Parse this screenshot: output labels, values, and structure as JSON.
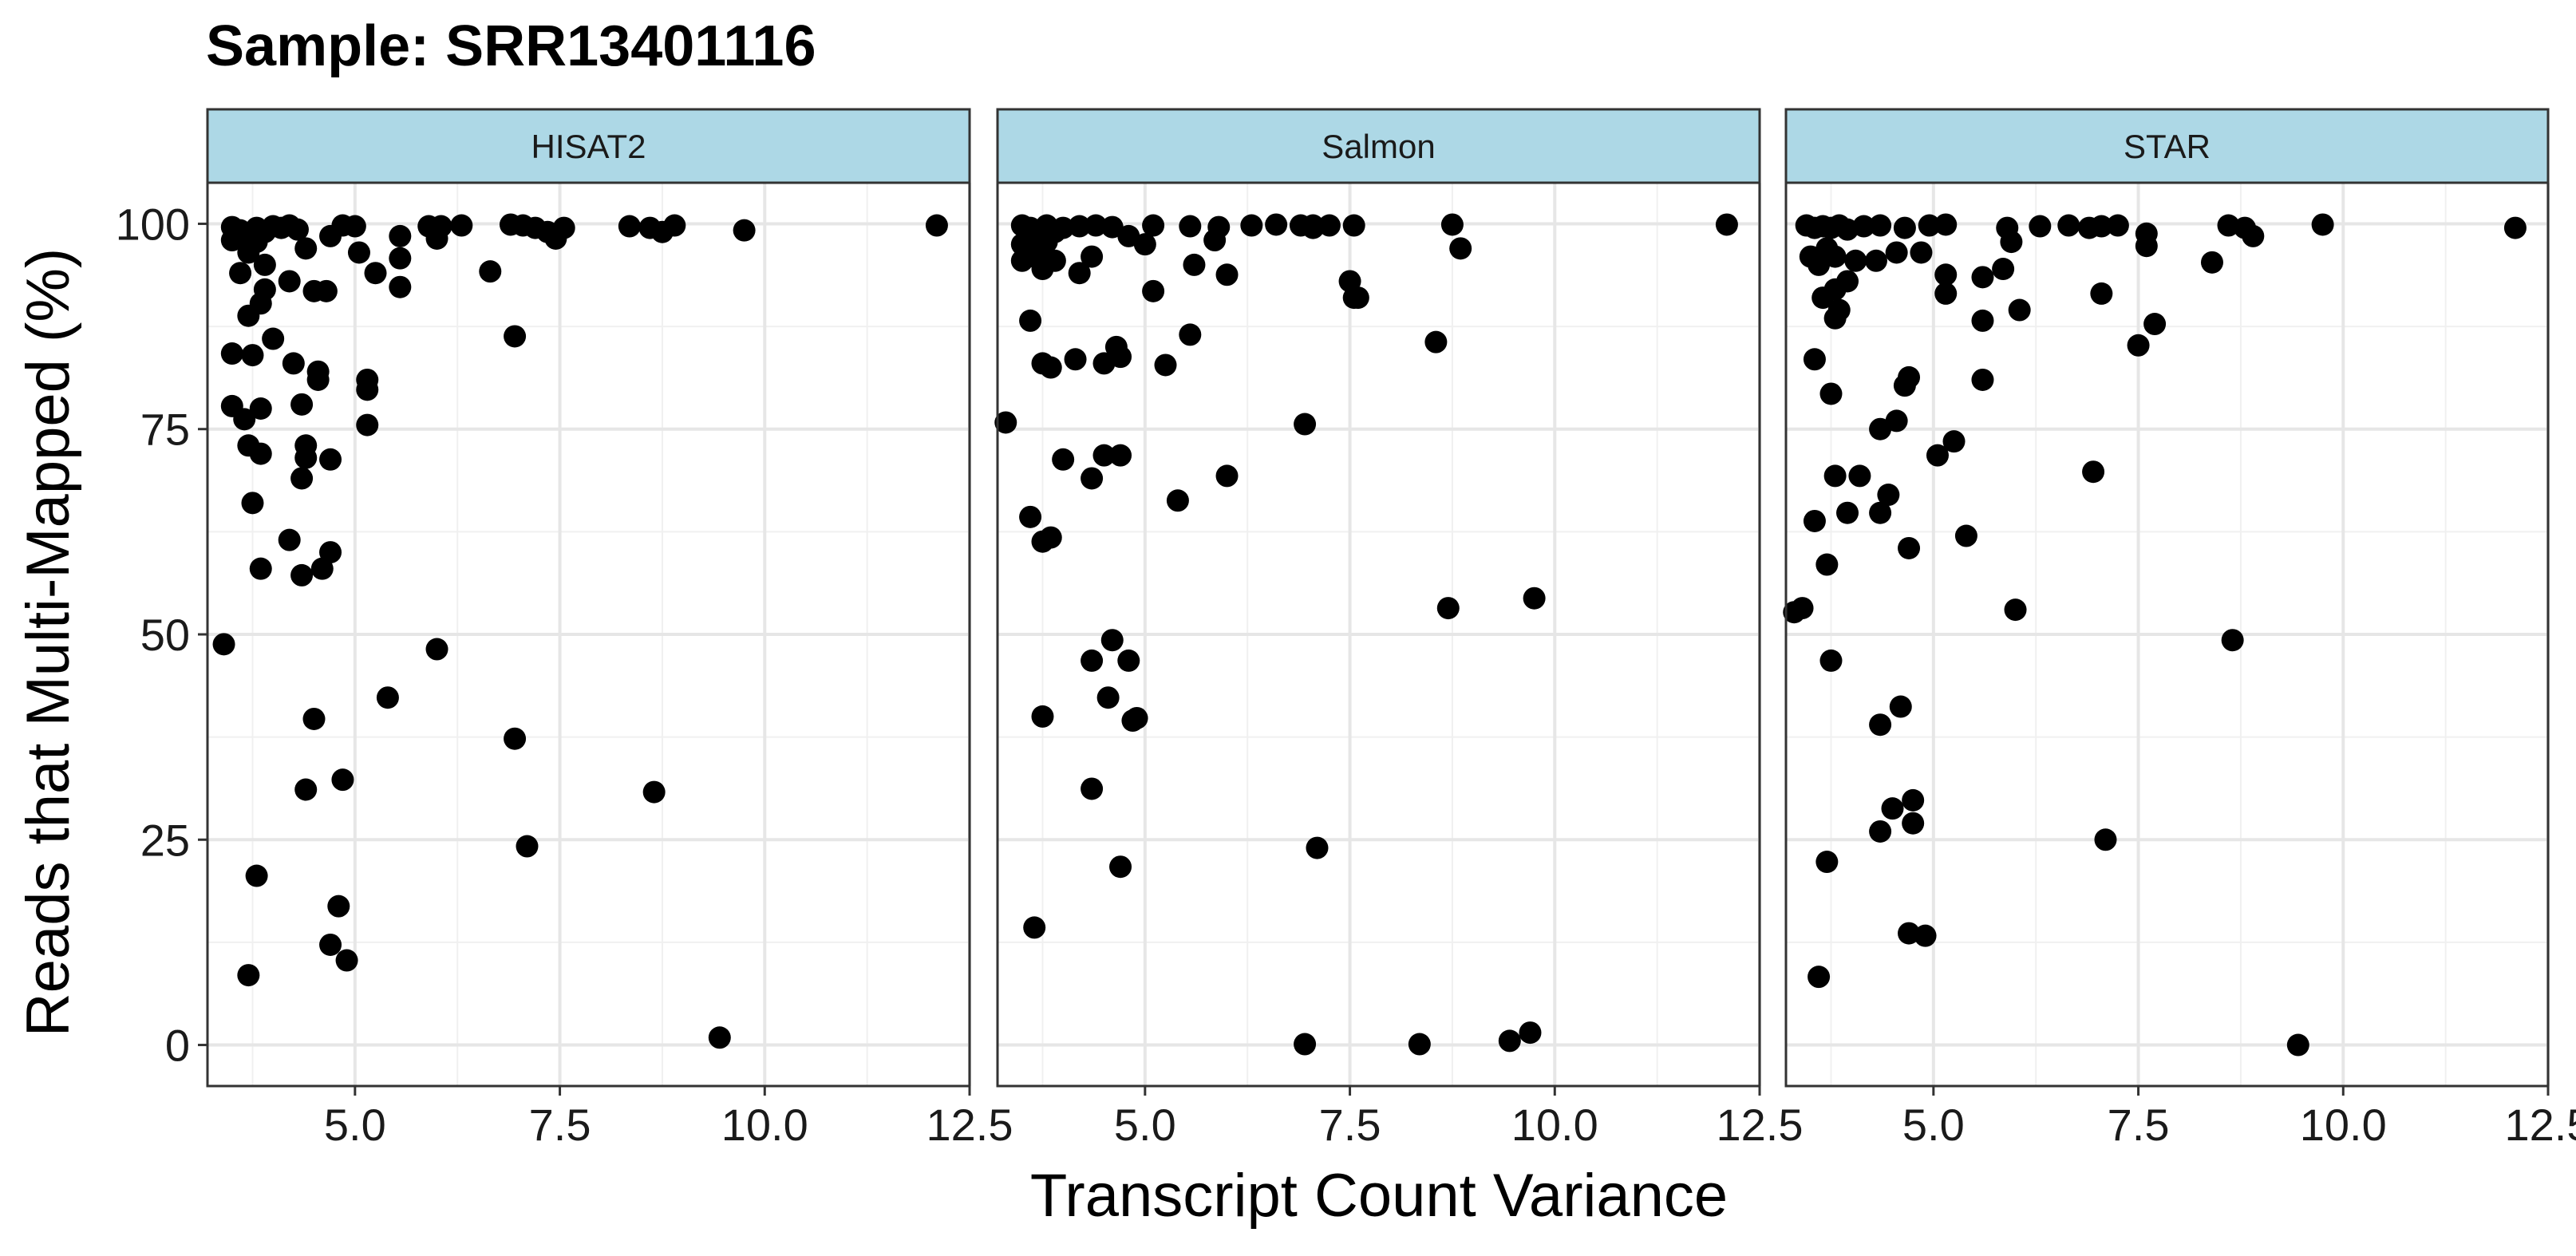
{
  "title": "Sample: SRR13401116",
  "chart_data": {
    "type": "scatter",
    "title": "Sample: SRR13401116",
    "xlabel": "Transcript Count Variance",
    "ylabel": "Reads that Multi-Mapped (%)",
    "xlim": [
      3.2,
      12.5
    ],
    "ylim": [
      -5,
      105
    ],
    "x_ticks": [
      "5.0",
      "7.5",
      "10.0",
      "12.5"
    ],
    "x_tick_values": [
      5.0,
      7.5,
      10.0,
      12.5
    ],
    "y_ticks": [
      "0",
      "25",
      "50",
      "75",
      "100"
    ],
    "y_tick_values": [
      0,
      25,
      50,
      75,
      100
    ],
    "grid": true,
    "strip_color": "#ADD8E6",
    "point_color": "#000000",
    "panels": [
      {
        "name": "HISAT2",
        "points": [
          [
            3.5,
            99.6
          ],
          [
            3.6,
            99.2
          ],
          [
            3.7,
            98.8
          ],
          [
            3.8,
            99.5
          ],
          [
            3.9,
            99.0
          ],
          [
            4.0,
            99.7
          ],
          [
            4.1,
            99.5
          ],
          [
            4.2,
            99.8
          ],
          [
            4.3,
            99.3
          ],
          [
            3.5,
            98.0
          ],
          [
            3.7,
            96.5
          ],
          [
            3.8,
            97.8
          ],
          [
            3.6,
            94.0
          ],
          [
            3.9,
            95.0
          ],
          [
            4.4,
            97.0
          ],
          [
            4.7,
            98.5
          ],
          [
            4.85,
            99.8
          ],
          [
            5.0,
            99.7
          ],
          [
            3.9,
            92.0
          ],
          [
            4.2,
            93.0
          ],
          [
            4.5,
            91.8
          ],
          [
            4.65,
            91.8
          ],
          [
            5.05,
            96.5
          ],
          [
            5.25,
            94.0
          ],
          [
            5.55,
            95.8
          ],
          [
            5.55,
            98.5
          ],
          [
            5.55,
            92.3
          ],
          [
            3.7,
            88.8
          ],
          [
            3.85,
            90.3
          ],
          [
            4.0,
            86.0
          ],
          [
            3.5,
            84.2
          ],
          [
            3.75,
            84.0
          ],
          [
            4.25,
            83.0
          ],
          [
            4.55,
            82.0
          ],
          [
            4.55,
            81.0
          ],
          [
            5.15,
            81.0
          ],
          [
            5.15,
            79.8
          ],
          [
            3.5,
            77.8
          ],
          [
            3.65,
            76.2
          ],
          [
            3.85,
            77.5
          ],
          [
            3.7,
            73.0
          ],
          [
            3.85,
            72.0
          ],
          [
            4.35,
            78.0
          ],
          [
            4.4,
            73.0
          ],
          [
            4.4,
            71.5
          ],
          [
            4.7,
            71.3
          ],
          [
            4.35,
            69.0
          ],
          [
            5.15,
            75.5
          ],
          [
            3.75,
            66.0
          ],
          [
            4.2,
            61.5
          ],
          [
            3.85,
            58.0
          ],
          [
            4.35,
            57.2
          ],
          [
            4.6,
            58.0
          ],
          [
            4.7,
            60.0
          ],
          [
            3.4,
            48.8
          ],
          [
            4.5,
            39.7
          ],
          [
            5.4,
            42.3
          ],
          [
            6.0,
            48.2
          ],
          [
            6.95,
            37.3
          ],
          [
            4.85,
            32.3
          ],
          [
            4.4,
            31.1
          ],
          [
            8.65,
            30.8
          ],
          [
            7.1,
            24.2
          ],
          [
            3.8,
            20.6
          ],
          [
            4.8,
            16.9
          ],
          [
            4.7,
            12.2
          ],
          [
            4.9,
            10.3
          ],
          [
            3.7,
            8.5
          ],
          [
            9.45,
            0.9
          ],
          [
            5.9,
            99.7
          ],
          [
            6.05,
            99.7
          ],
          [
            6.3,
            99.8
          ],
          [
            6.0,
            98.2
          ],
          [
            6.65,
            94.2
          ],
          [
            6.9,
            99.9
          ],
          [
            7.05,
            99.8
          ],
          [
            7.2,
            99.5
          ],
          [
            7.35,
            99.0
          ],
          [
            7.45,
            98.2
          ],
          [
            7.55,
            99.5
          ],
          [
            6.95,
            86.3
          ],
          [
            8.35,
            99.7
          ],
          [
            8.6,
            99.5
          ],
          [
            8.75,
            99.0
          ],
          [
            8.9,
            99.8
          ],
          [
            9.75,
            99.2
          ],
          [
            12.1,
            99.8
          ]
        ]
      },
      {
        "name": "Salmon",
        "points": [
          [
            3.5,
            99.8
          ],
          [
            3.6,
            99.5
          ],
          [
            3.7,
            99.2
          ],
          [
            3.8,
            99.8
          ],
          [
            3.9,
            99.0
          ],
          [
            4.0,
            99.5
          ],
          [
            4.2,
            99.7
          ],
          [
            4.4,
            99.8
          ],
          [
            4.6,
            99.6
          ],
          [
            3.5,
            97.5
          ],
          [
            3.6,
            98.0
          ],
          [
            3.7,
            96.5
          ],
          [
            3.8,
            97.8
          ],
          [
            3.5,
            95.5
          ],
          [
            3.65,
            96.0
          ],
          [
            3.75,
            94.5
          ],
          [
            3.9,
            95.5
          ],
          [
            4.35,
            96.0
          ],
          [
            4.2,
            94.0
          ],
          [
            4.8,
            98.5
          ],
          [
            5.0,
            97.5
          ],
          [
            5.1,
            99.8
          ],
          [
            5.55,
            99.7
          ],
          [
            5.9,
            99.6
          ],
          [
            5.85,
            98.0
          ],
          [
            5.6,
            95.0
          ],
          [
            6.0,
            93.8
          ],
          [
            5.1,
            91.8
          ],
          [
            3.6,
            88.2
          ],
          [
            3.75,
            83.0
          ],
          [
            3.85,
            82.5
          ],
          [
            4.15,
            83.5
          ],
          [
            4.5,
            83.0
          ],
          [
            4.65,
            85.0
          ],
          [
            4.7,
            83.8
          ],
          [
            5.25,
            82.8
          ],
          [
            5.55,
            86.5
          ],
          [
            3.3,
            75.8
          ],
          [
            4.0,
            71.3
          ],
          [
            4.35,
            69.0
          ],
          [
            4.5,
            71.8
          ],
          [
            4.7,
            71.8
          ],
          [
            5.4,
            66.3
          ],
          [
            6.0,
            69.3
          ],
          [
            3.6,
            64.3
          ],
          [
            3.75,
            61.3
          ],
          [
            3.85,
            61.8
          ],
          [
            4.6,
            49.3
          ],
          [
            4.35,
            46.8
          ],
          [
            4.8,
            46.8
          ],
          [
            4.55,
            42.3
          ],
          [
            3.75,
            40.0
          ],
          [
            4.85,
            39.5
          ],
          [
            4.9,
            39.8
          ],
          [
            4.35,
            31.2
          ],
          [
            4.7,
            21.7
          ],
          [
            3.65,
            14.3
          ],
          [
            6.3,
            99.8
          ],
          [
            6.6,
            99.9
          ],
          [
            6.9,
            99.8
          ],
          [
            7.05,
            99.5
          ],
          [
            7.25,
            99.8
          ],
          [
            7.55,
            99.8
          ],
          [
            7.05,
            99.8
          ],
          [
            7.5,
            93.0
          ],
          [
            7.6,
            91.0
          ],
          [
            7.55,
            91.0
          ],
          [
            6.95,
            75.6
          ],
          [
            7.1,
            24.0
          ],
          [
            8.55,
            85.6
          ],
          [
            8.75,
            99.9
          ],
          [
            8.85,
            97.0
          ],
          [
            8.7,
            53.2
          ],
          [
            9.75,
            54.4
          ],
          [
            6.95,
            0.1
          ],
          [
            8.35,
            0.1
          ],
          [
            9.45,
            0.5
          ],
          [
            9.7,
            1.5
          ],
          [
            12.1,
            99.9
          ]
        ]
      },
      {
        "name": "STAR",
        "points": [
          [
            3.45,
            99.8
          ],
          [
            3.55,
            99.5
          ],
          [
            3.65,
            99.7
          ],
          [
            3.75,
            99.5
          ],
          [
            3.85,
            99.8
          ],
          [
            3.95,
            99.3
          ],
          [
            4.15,
            99.7
          ],
          [
            4.35,
            99.8
          ],
          [
            4.65,
            99.5
          ],
          [
            4.95,
            99.8
          ],
          [
            5.15,
            99.9
          ],
          [
            3.5,
            96.0
          ],
          [
            3.6,
            95.0
          ],
          [
            3.7,
            97.0
          ],
          [
            3.8,
            96.0
          ],
          [
            3.65,
            91.0
          ],
          [
            3.8,
            92.0
          ],
          [
            3.95,
            93.0
          ],
          [
            4.05,
            95.5
          ],
          [
            4.3,
            95.5
          ],
          [
            4.55,
            96.5
          ],
          [
            4.85,
            96.5
          ],
          [
            3.85,
            89.5
          ],
          [
            3.8,
            88.5
          ],
          [
            5.15,
            91.5
          ],
          [
            5.15,
            93.8
          ],
          [
            5.6,
            93.5
          ],
          [
            5.85,
            94.5
          ],
          [
            5.9,
            99.5
          ],
          [
            5.95,
            97.8
          ],
          [
            6.05,
            89.5
          ],
          [
            5.6,
            88.2
          ],
          [
            3.55,
            83.5
          ],
          [
            3.75,
            79.3
          ],
          [
            4.65,
            80.3
          ],
          [
            4.7,
            81.3
          ],
          [
            5.6,
            81.0
          ],
          [
            4.35,
            75.0
          ],
          [
            4.55,
            76.0
          ],
          [
            5.05,
            71.8
          ],
          [
            5.25,
            73.5
          ],
          [
            3.8,
            69.3
          ],
          [
            3.95,
            64.8
          ],
          [
            4.1,
            69.3
          ],
          [
            4.35,
            64.8
          ],
          [
            4.45,
            67.0
          ],
          [
            3.55,
            63.8
          ],
          [
            3.7,
            58.5
          ],
          [
            4.7,
            60.5
          ],
          [
            5.4,
            62.0
          ],
          [
            3.3,
            52.7
          ],
          [
            3.4,
            53.2
          ],
          [
            3.75,
            46.8
          ],
          [
            6.0,
            53.0
          ],
          [
            4.35,
            39.0
          ],
          [
            4.6,
            41.2
          ],
          [
            4.5,
            28.8
          ],
          [
            4.75,
            29.8
          ],
          [
            4.35,
            26.0
          ],
          [
            4.75,
            27.0
          ],
          [
            3.7,
            22.3
          ],
          [
            4.7,
            13.6
          ],
          [
            4.9,
            13.3
          ],
          [
            3.6,
            8.3
          ],
          [
            6.3,
            99.7
          ],
          [
            6.65,
            99.8
          ],
          [
            6.9,
            99.5
          ],
          [
            7.05,
            99.7
          ],
          [
            7.25,
            99.8
          ],
          [
            7.6,
            98.8
          ],
          [
            7.6,
            97.3
          ],
          [
            7.05,
            91.5
          ],
          [
            7.5,
            85.2
          ],
          [
            7.7,
            87.8
          ],
          [
            6.95,
            69.8
          ],
          [
            7.1,
            25.0
          ],
          [
            8.4,
            95.3
          ],
          [
            8.6,
            99.8
          ],
          [
            8.8,
            99.5
          ],
          [
            8.9,
            98.5
          ],
          [
            9.75,
            99.9
          ],
          [
            8.65,
            49.3
          ],
          [
            9.45,
            0.0
          ],
          [
            12.1,
            99.5
          ]
        ]
      }
    ]
  }
}
